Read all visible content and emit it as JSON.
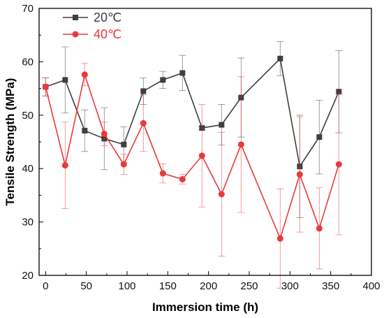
{
  "chart_data": {
    "type": "line",
    "xlabel": "Immersion time (h)",
    "ylabel": "Tensile Strength (MPa)",
    "xlim": [
      -8,
      400
    ],
    "ylim": [
      20,
      70
    ],
    "x_ticks": [
      0,
      50,
      100,
      150,
      200,
      250,
      300,
      350,
      400
    ],
    "y_ticks": [
      20,
      30,
      40,
      50,
      60,
      70
    ],
    "legend_position": "top-left",
    "grid": false,
    "series": [
      {
        "name": "20℃",
        "color": "#3f3f3f",
        "marker": "square",
        "x": [
          0,
          24,
          48,
          72,
          96,
          120,
          144,
          168,
          192,
          216,
          240,
          288,
          312,
          336,
          360
        ],
        "y": [
          55.3,
          56.6,
          47.1,
          45.6,
          44.5,
          54.5,
          56.6,
          57.9,
          47.6,
          48.2,
          53.3,
          60.6,
          40.4,
          45.9,
          54.4
        ],
        "yerr": [
          1.7,
          6.2,
          3.9,
          5.8,
          3.3,
          2.5,
          1.6,
          3.3,
          0.3,
          3.8,
          7.4,
          3.2,
          9.6,
          6.9,
          7.7
        ]
      },
      {
        "name": "40℃",
        "color": "#e83a3a",
        "marker": "circle",
        "x": [
          0,
          24,
          48,
          72,
          96,
          120,
          144,
          168,
          192,
          216,
          240,
          288,
          312,
          336,
          360
        ],
        "y": [
          55.3,
          40.6,
          57.6,
          46.5,
          40.8,
          48.5,
          39.1,
          38.0,
          42.4,
          35.2,
          44.5,
          26.9,
          38.9,
          28.8,
          40.8
        ],
        "yerr": [
          1.7,
          8.1,
          2.1,
          2.2,
          1.9,
          5.3,
          1.8,
          0.9,
          9.6,
          11.6,
          12.7,
          9.3,
          10.8,
          7.6,
          13.2
        ]
      }
    ]
  }
}
